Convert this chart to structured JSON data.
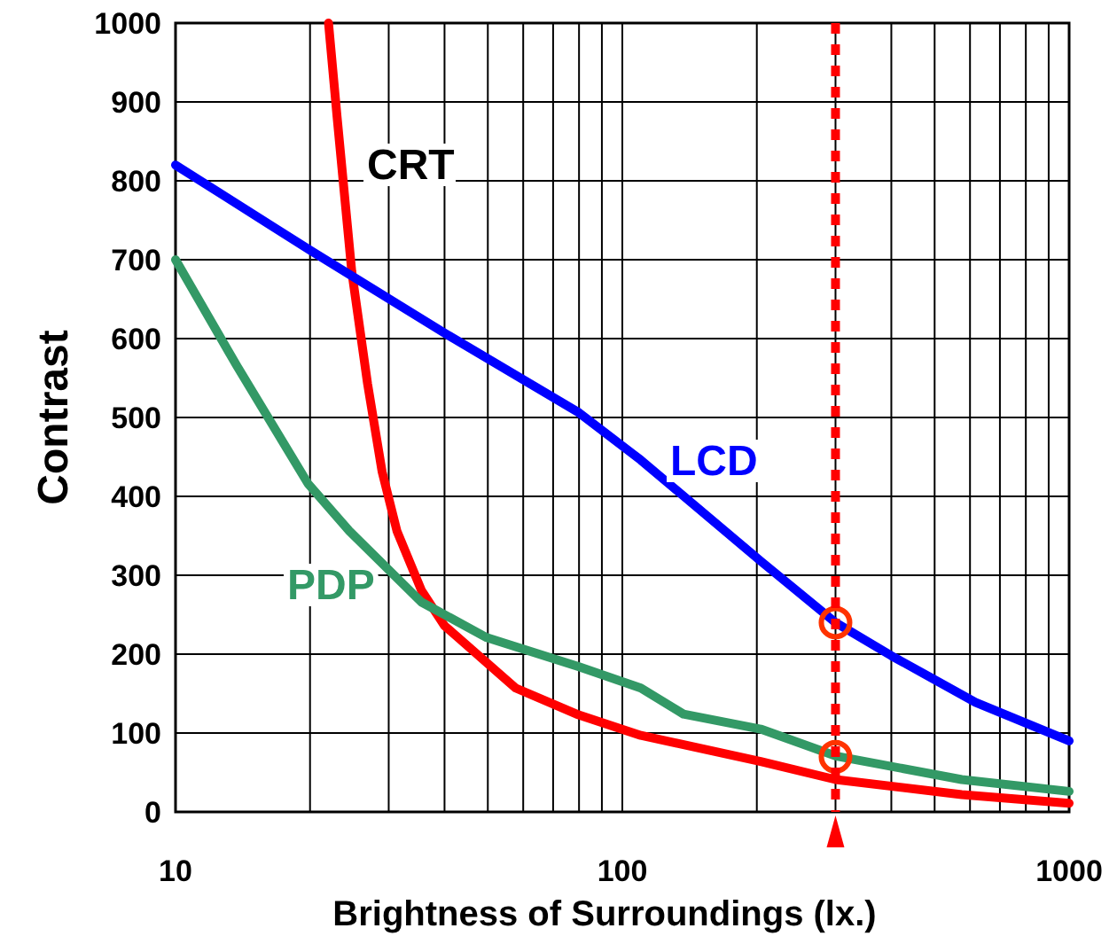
{
  "chart_data": {
    "type": "line",
    "xlabel": "Brightness of Surroundings (lx.)",
    "ylabel": "Contrast",
    "log": "x",
    "grid": true,
    "line_style": "solid",
    "xlim": [
      10,
      1000
    ],
    "ylim": [
      0,
      1000
    ],
    "xticks": [
      10,
      {
        "value": 20,
        "label": null
      },
      {
        "value": 30,
        "label": null
      },
      {
        "value": 40,
        "label": null
      },
      {
        "value": 50,
        "label": null
      },
      {
        "value": 60,
        "label": null
      },
      {
        "value": 70,
        "label": null
      },
      {
        "value": 80,
        "label": null
      },
      {
        "value": 90,
        "label": null
      },
      100,
      {
        "value": 200,
        "label": null
      },
      {
        "value": 300,
        "label": null
      },
      {
        "value": 400,
        "label": null
      },
      {
        "value": 500,
        "label": null
      },
      {
        "value": 600,
        "label": null
      },
      {
        "value": 700,
        "label": null
      },
      {
        "value": 800,
        "label": null
      },
      {
        "value": 900,
        "label": null
      },
      1000
    ],
    "yticks": [
      0,
      100,
      200,
      300,
      400,
      500,
      600,
      700,
      800,
      900,
      1000
    ],
    "series": [
      {
        "name": "CRT",
        "color": "#ff0000",
        "x": [
          22,
          23,
          24.8,
          26.9,
          29,
          31.3,
          35.5,
          40,
          57.7,
          79,
          110,
          204,
          300,
          575,
          1000
        ],
        "values": [
          1000,
          880,
          685,
          543,
          431,
          356,
          281,
          236,
          157,
          124,
          97,
          64,
          41,
          22,
          11
        ]
      },
      {
        "name": "LCD",
        "color": "#0000ff",
        "x": [
          10,
          20,
          40,
          80,
          110,
          204,
          300,
          400,
          617,
          1000
        ],
        "values": [
          820,
          712,
          607,
          506,
          446,
          318,
          240,
          198,
          139,
          90
        ]
      },
      {
        "name": "PDP",
        "color": "#339966",
        "x": [
          10,
          13.7,
          19.8,
          24.5,
          35.5,
          49.7,
          80,
          110,
          137,
          204,
          300,
          575,
          1000
        ],
        "values": [
          700,
          566,
          416,
          356,
          266,
          221,
          184,
          157,
          124,
          105,
          71,
          41,
          26
        ]
      },
      {
        "type": "scatter",
        "marker": "circle",
        "color": "#ff3300",
        "x": [
          300,
          300
        ],
        "values": [
          240,
          70
        ]
      }
    ],
    "ref_lines": [
      {
        "axis": "x",
        "value": 300,
        "color": "#ff0000",
        "line_style": "dotted"
      }
    ]
  }
}
